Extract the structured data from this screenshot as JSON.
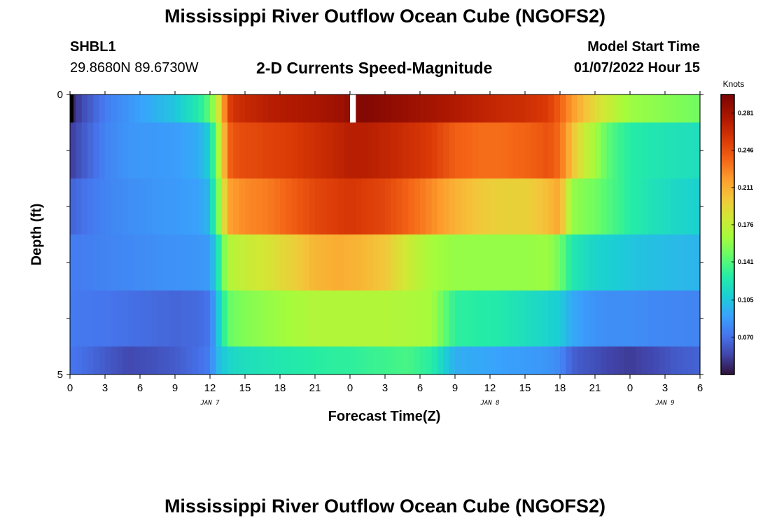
{
  "header": {
    "title": "Mississippi River Outflow Ocean Cube (NGOFS2)",
    "station": "SHBL1",
    "coords": "29.8680N  89.6730W",
    "subtitle": "2-D Currents Speed-Magnitude",
    "model_start_label": "Model Start Time",
    "model_start_value": "01/07/2022 Hour 15"
  },
  "footer": {
    "title": "Mississippi River Outflow Ocean Cube (NGOFS2)"
  },
  "chart_data": {
    "type": "heatmap",
    "title": "2-D Currents Speed-Magnitude",
    "xlabel": "Forecast Time(Z)",
    "ylabel": "Depth (ft)",
    "x_tick_labels": [
      "0",
      "3",
      "6",
      "9",
      "12",
      "15",
      "18",
      "21",
      "0",
      "3",
      "6",
      "9",
      "12",
      "15",
      "18",
      "21",
      "0",
      "3",
      "6"
    ],
    "x_hours": [
      0,
      3,
      6,
      9,
      12,
      15,
      18,
      21,
      24,
      27,
      30,
      33,
      36,
      39,
      42,
      45,
      48,
      51,
      54
    ],
    "date_labels": [
      {
        "label": "JAN 7",
        "hour": 12
      },
      {
        "label": "JAN 8",
        "hour": 36
      },
      {
        "label": "JAN 9",
        "hour": 51
      }
    ],
    "xlim": [
      0,
      54
    ],
    "ylim": [
      0,
      5
    ],
    "y_tick_labels": [
      "0",
      "5"
    ],
    "colorbar": {
      "units": "Knots",
      "range": [
        0.035,
        0.2985
      ],
      "ticks": [
        "0.281",
        "0.246",
        "0.211",
        "0.176",
        "0.141",
        "0.105",
        "0.070"
      ],
      "tick_values": [
        0.281,
        0.246,
        0.211,
        0.176,
        0.141,
        0.105,
        0.07
      ],
      "colormap": "turbo"
    },
    "depth_bins": [
      [
        0,
        0.5
      ],
      [
        0.5,
        1.5
      ],
      [
        1.5,
        2.5
      ],
      [
        2.5,
        3.5
      ],
      [
        3.5,
        4.5
      ],
      [
        4.5,
        5
      ]
    ],
    "time_keypoints": [
      0,
      1,
      3,
      5,
      7,
      9,
      11,
      12,
      12.5,
      13,
      13.5,
      14,
      15,
      17,
      19,
      21,
      23,
      24,
      25,
      27,
      29,
      31,
      33,
      35,
      37,
      39,
      41,
      42,
      43,
      44,
      45,
      46,
      47,
      48,
      50,
      52,
      54
    ],
    "series": [
      {
        "name": "0",
        "values": [
          0.04,
          0.055,
          0.075,
          0.085,
          0.095,
          0.105,
          0.125,
          0.145,
          0.17,
          0.2,
          0.25,
          0.26,
          0.265,
          0.272,
          0.275,
          0.278,
          0.283,
          0.288,
          0.295,
          0.29,
          0.285,
          0.28,
          0.275,
          0.27,
          0.265,
          0.262,
          0.255,
          0.24,
          0.22,
          0.205,
          0.19,
          0.18,
          0.17,
          0.162,
          0.158,
          0.154,
          0.15
        ]
      },
      {
        "name": "1",
        "values": [
          0.05,
          0.06,
          0.078,
          0.085,
          0.087,
          0.088,
          0.095,
          0.11,
          0.15,
          0.185,
          0.235,
          0.245,
          0.248,
          0.252,
          0.255,
          0.262,
          0.268,
          0.272,
          0.272,
          0.268,
          0.262,
          0.255,
          0.24,
          0.235,
          0.235,
          0.238,
          0.245,
          0.235,
          0.205,
          0.18,
          0.165,
          0.145,
          0.135,
          0.128,
          0.123,
          0.12,
          0.118
        ]
      },
      {
        "name": "2",
        "values": [
          0.065,
          0.07,
          0.078,
          0.082,
          0.085,
          0.087,
          0.09,
          0.1,
          0.14,
          0.17,
          0.215,
          0.22,
          0.225,
          0.23,
          0.24,
          0.25,
          0.255,
          0.258,
          0.255,
          0.25,
          0.238,
          0.225,
          0.21,
          0.2,
          0.195,
          0.195,
          0.205,
          0.215,
          0.16,
          0.155,
          0.15,
          0.142,
          0.135,
          0.128,
          0.12,
          0.114,
          0.11
        ]
      },
      {
        "name": "3",
        "values": [
          0.075,
          0.075,
          0.078,
          0.08,
          0.082,
          0.084,
          0.085,
          0.088,
          0.11,
          0.14,
          0.17,
          0.172,
          0.178,
          0.185,
          0.195,
          0.208,
          0.212,
          0.21,
          0.208,
          0.2,
          0.18,
          0.165,
          0.16,
          0.16,
          0.16,
          0.16,
          0.162,
          0.15,
          0.125,
          0.118,
          0.112,
          0.11,
          0.108,
          0.105,
          0.102,
          0.1,
          0.098
        ]
      },
      {
        "name": "4",
        "values": [
          0.075,
          0.073,
          0.072,
          0.07,
          0.068,
          0.066,
          0.068,
          0.072,
          0.095,
          0.12,
          0.145,
          0.15,
          0.155,
          0.16,
          0.165,
          0.17,
          0.17,
          0.17,
          0.17,
          0.17,
          0.168,
          0.165,
          0.13,
          0.128,
          0.125,
          0.118,
          0.112,
          0.108,
          0.094,
          0.088,
          0.084,
          0.082,
          0.082,
          0.082,
          0.08,
          0.079,
          0.078
        ]
      },
      {
        "name": "5",
        "values": [
          0.072,
          0.07,
          0.062,
          0.055,
          0.058,
          0.062,
          0.07,
          0.075,
          0.095,
          0.105,
          0.11,
          0.115,
          0.118,
          0.122,
          0.125,
          0.128,
          0.13,
          0.13,
          0.132,
          0.135,
          0.138,
          0.128,
          0.095,
          0.093,
          0.09,
          0.088,
          0.085,
          0.08,
          0.065,
          0.06,
          0.058,
          0.054,
          0.052,
          0.05,
          0.055,
          0.062,
          0.065
        ]
      }
    ],
    "missing": [
      {
        "depth": 0,
        "hour_range": [
          24,
          24.5
        ],
        "color": "#ffffff"
      },
      {
        "depth": 0,
        "hour_range": [
          0,
          0.3
        ],
        "color": "#000000"
      }
    ]
  }
}
